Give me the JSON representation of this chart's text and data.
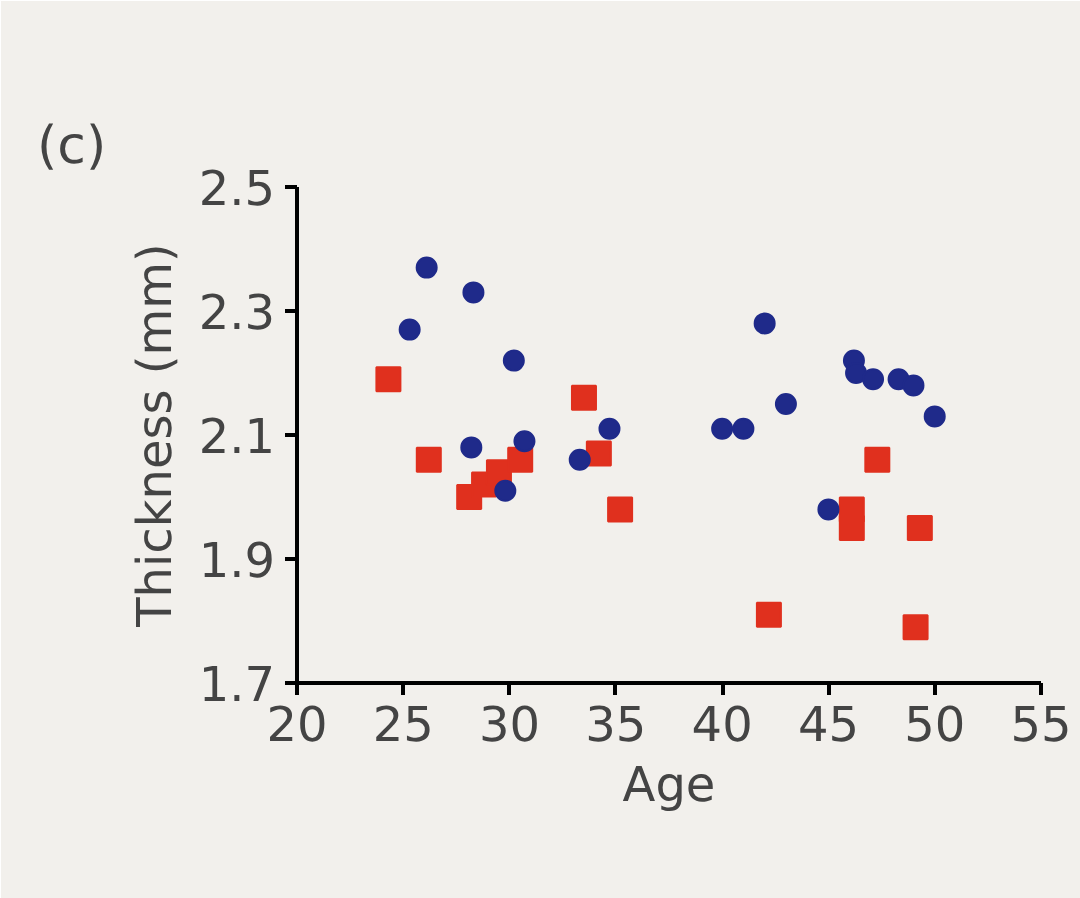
{
  "chart_data": {
    "type": "scatter",
    "title": "(c)",
    "xlabel": "Age",
    "ylabel": "Thickness (mm)",
    "xlim": [
      20,
      55
    ],
    "xticks": [
      20,
      25,
      30,
      35,
      40,
      45,
      50,
      55
    ],
    "ylim": [
      1.7,
      2.5
    ],
    "yticks": [
      1.7,
      1.9,
      2.1,
      2.3,
      2.5
    ],
    "grid": false,
    "series": [
      {
        "color": "#e0301e",
        "marker": "square",
        "x": [
          24.3,
          26.2,
          28.1,
          28.8,
          29.5,
          30.5,
          33.5,
          34.2,
          35.2,
          42.2,
          46.1,
          46.1,
          47.3,
          49.3,
          49.1
        ],
        "values": [
          2.19,
          2.06,
          2.0,
          2.02,
          2.04,
          2.06,
          2.16,
          2.07,
          1.98,
          1.81,
          1.98,
          1.95,
          2.06,
          1.95,
          1.79
        ]
      },
      {
        "color": "#1f2a8a",
        "marker": "circle",
        "x": [
          25.3,
          26.1,
          28.3,
          30.2,
          28.2,
          29.8,
          30.7,
          33.3,
          34.7,
          40.0,
          41.0,
          42.0,
          43.0,
          45.0,
          46.2,
          46.3,
          47.1,
          48.3,
          49.0,
          50.0
        ],
        "values": [
          2.27,
          2.37,
          2.33,
          2.22,
          2.08,
          2.01,
          2.09,
          2.06,
          2.11,
          2.11,
          2.11,
          2.28,
          2.15,
          1.98,
          2.22,
          2.2,
          2.19,
          2.19,
          2.18,
          2.13
        ]
      }
    ]
  }
}
